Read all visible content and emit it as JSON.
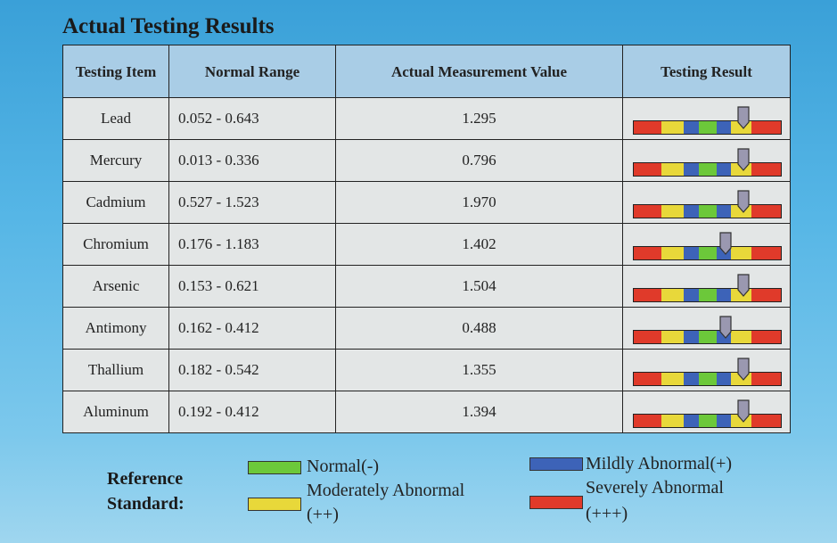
{
  "title": "Actual Testing Results",
  "headers": [
    "Testing Item",
    "Normal Range",
    "Actual Measurement Value",
    "Testing Result"
  ],
  "colors": {
    "red": "#e03a2a",
    "yellow": "#e8d83a",
    "blue": "#3d63b8",
    "green": "#6cc83a",
    "marker": "#9a98b0"
  },
  "scale_segments": [
    {
      "color": "red",
      "pct": 19
    },
    {
      "color": "yellow",
      "pct": 15
    },
    {
      "color": "blue",
      "pct": 10.5
    },
    {
      "color": "green",
      "pct": 12
    },
    {
      "color": "blue",
      "pct": 9.5
    },
    {
      "color": "yellow",
      "pct": 14
    },
    {
      "color": "red",
      "pct": 20
    }
  ],
  "rows": [
    {
      "item": "Lead",
      "range": "0.052 - 0.643",
      "value": "1.295",
      "marker_pct": 74
    },
    {
      "item": "Mercury",
      "range": "0.013 - 0.336",
      "value": "0.796",
      "marker_pct": 74
    },
    {
      "item": "Cadmium",
      "range": "0.527 - 1.523",
      "value": "1.970",
      "marker_pct": 74
    },
    {
      "item": "Chromium",
      "range": "0.176 - 1.183",
      "value": "1.402",
      "marker_pct": 62
    },
    {
      "item": "Arsenic",
      "range": "0.153 - 0.621",
      "value": "1.504",
      "marker_pct": 74
    },
    {
      "item": "Antimony",
      "range": "0.162 - 0.412",
      "value": "0.488",
      "marker_pct": 62
    },
    {
      "item": "Thallium",
      "range": "0.182 - 0.542",
      "value": "1.355",
      "marker_pct": 74
    },
    {
      "item": "Aluminum",
      "range": "0.192 - 0.412",
      "value": "1.394",
      "marker_pct": 74
    }
  ],
  "legend": {
    "label_line1": "Reference",
    "label_line2": "Standard:",
    "normal": "Normal(-)",
    "moderate_line1": "Moderately Abnormal",
    "moderate_line2": "(++)",
    "mild": "Mildly Abnormal(+)",
    "severe_line1": "Severely Abnormal",
    "severe_line2": "(+++)"
  }
}
